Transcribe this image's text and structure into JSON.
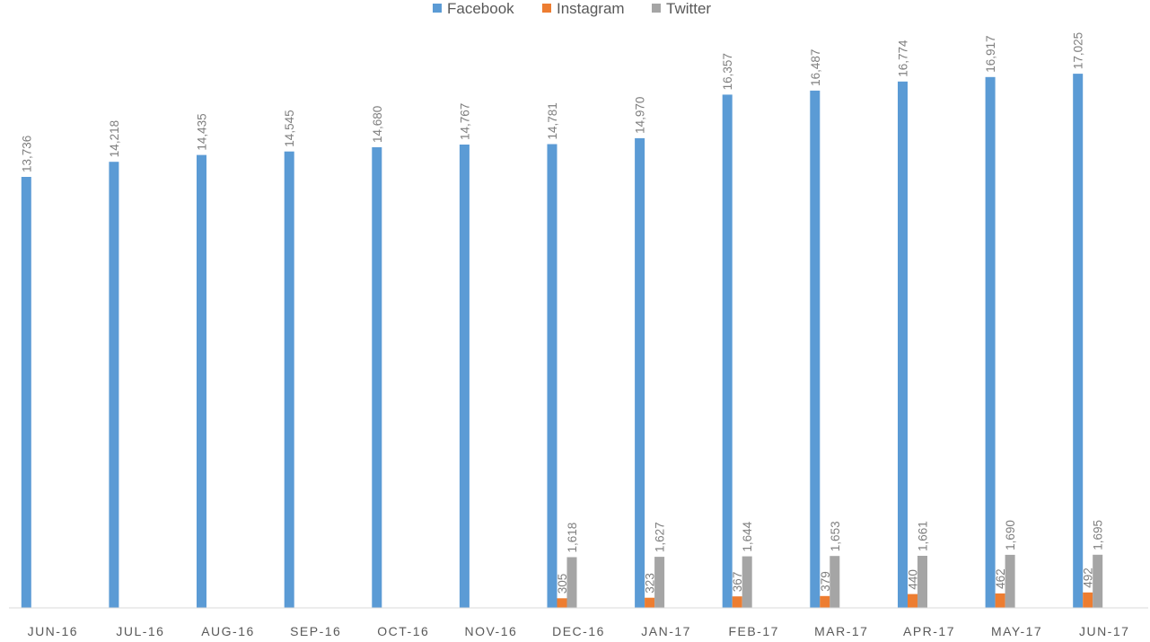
{
  "chart_data": {
    "type": "bar",
    "title": "",
    "xlabel": "",
    "ylabel": "",
    "ylim": [
      0,
      17500
    ],
    "grid": false,
    "legend": "top",
    "categories": [
      "JUN-16",
      "JUL-16",
      "AUG-16",
      "SEP-16",
      "OCT-16",
      "NOV-16",
      "DEC-16",
      "JAN-17",
      "FEB-17",
      "MAR-17",
      "APR-17",
      "MAY-17",
      "JUN-17"
    ],
    "category_labels": [
      "JUN-16",
      "JUL-16",
      "AUG-16",
      "SEP-16",
      "OCT-16",
      "NOV-16",
      "DEC-16",
      "JAN-17",
      "FEB-17",
      "MAR-17",
      "APR-17",
      "MAY-17",
      "JUN-17"
    ],
    "series": [
      {
        "name": "Facebook",
        "color": "#5b9bd5",
        "values": [
          13736,
          14218,
          14435,
          14545,
          14680,
          14767,
          14781,
          14970,
          16357,
          16487,
          16774,
          16917,
          17025
        ],
        "labels": [
          "13,736",
          "14,218",
          "14,435",
          "14,545",
          "14,680",
          "14,767",
          "14,781",
          "14,970",
          "16,357",
          "16,487",
          "16,774",
          "16,917",
          "17,025"
        ]
      },
      {
        "name": "Instagram",
        "color": "#ed7d31",
        "values": [
          null,
          null,
          null,
          null,
          null,
          null,
          305,
          323,
          367,
          379,
          440,
          462,
          492
        ],
        "labels": [
          "",
          "",
          "",
          "",
          "",
          "",
          "305",
          "323",
          "367",
          "379",
          "440",
          "462",
          "492"
        ]
      },
      {
        "name": "Twitter",
        "color": "#a5a5a5",
        "values": [
          null,
          null,
          null,
          null,
          null,
          null,
          1618,
          1627,
          1644,
          1653,
          1661,
          1690,
          1695
        ],
        "labels": [
          "",
          "",
          "",
          "",
          "",
          "",
          "1,618",
          "1,627",
          "1,644",
          "1,653",
          "1,661",
          "1,690",
          "1,695"
        ]
      }
    ]
  }
}
